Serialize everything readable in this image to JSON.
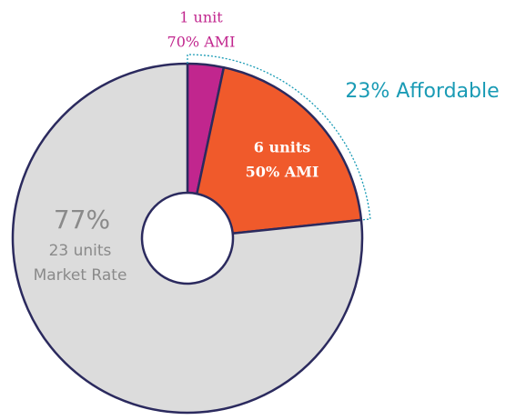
{
  "chart_data": {
    "type": "donut",
    "categories": [
      "70% AMI",
      "50% AMI",
      "Market Rate"
    ],
    "values": [
      1,
      6,
      23
    ],
    "value_labels": [
      "1 unit",
      "6 units",
      "23 units"
    ],
    "colors": [
      "#c1268e",
      "#f05a2b",
      "#dcdcdc"
    ],
    "market_percent_label": "77%",
    "affordable_label": "23% Affordable"
  }
}
